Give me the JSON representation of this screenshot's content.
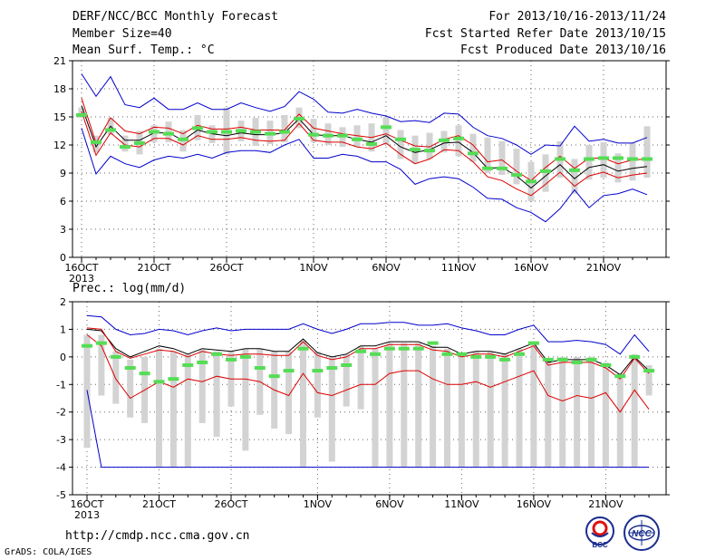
{
  "header": {
    "title": "DERF/NCC/BCC Monthly Forecast",
    "member_size": "Member Size=40",
    "variable": "Mean Surf. Temp.: °C",
    "period": "For 2013/10/16-2013/11/24",
    "started": "Fcst Started Refer Date 2013/10/15",
    "produced": "Fcst Produced Date 2013/10/16"
  },
  "footer": {
    "url": "http://cmdp.ncc.cma.gov.cn",
    "credit": "GrADS: COLA/IGES",
    "logo1_text": "BCC",
    "logo2_text": "NCC"
  },
  "chart_data": [
    {
      "type": "line",
      "title": "Mean Surf. Temp.: °C",
      "x_tick_labels": [
        "16OCT",
        "21OCT",
        "26OCT",
        "1NOV",
        "6NOV",
        "11NOV",
        "16NOV",
        "21NOV"
      ],
      "x_tick_index": [
        0,
        5,
        10,
        16,
        21,
        26,
        31,
        36
      ],
      "x_year_label": "2013",
      "ylim": [
        0,
        21
      ],
      "yticks": [
        0,
        3,
        6,
        9,
        12,
        15,
        18,
        21
      ],
      "grid": "dotted",
      "box_color": "#d3d3d3",
      "series": [
        {
          "role": "max",
          "color": "#0000cc",
          "values": [
            19.6,
            17.2,
            19.3,
            16.3,
            16.0,
            17.0,
            15.8,
            15.8,
            16.5,
            15.8,
            15.8,
            16.5,
            16.0,
            15.6,
            16.1,
            17.7,
            16.9,
            15.5,
            15.4,
            15.8,
            15.4,
            15.1,
            14.5,
            14.6,
            14.4,
            15.4,
            15.3,
            13.9,
            13.0,
            12.7,
            12.0,
            11.0,
            12.0,
            11.9,
            14.0,
            12.4,
            12.6,
            12.2,
            12.2,
            12.8
          ]
        },
        {
          "role": "upper",
          "color": "#dd0000",
          "values": [
            17.0,
            12.2,
            14.9,
            13.5,
            13.2,
            13.9,
            13.8,
            13.2,
            14.1,
            13.7,
            13.7,
            13.9,
            13.6,
            13.6,
            13.6,
            15.3,
            13.8,
            13.5,
            13.2,
            13.0,
            12.8,
            13.2,
            12.5,
            11.9,
            11.8,
            12.6,
            13.0,
            12.0,
            10.2,
            10.4,
            9.2,
            8.2,
            9.6,
            10.8,
            9.5,
            10.6,
            10.6,
            10.0,
            10.4,
            10.5
          ]
        },
        {
          "role": "median",
          "color": "#000000",
          "values": [
            16.2,
            11.8,
            14.0,
            12.5,
            12.5,
            13.3,
            13.3,
            12.5,
            13.6,
            13.2,
            13.0,
            13.3,
            13.1,
            13.1,
            13.3,
            14.8,
            13.1,
            13.0,
            13.0,
            12.6,
            12.3,
            13.0,
            11.8,
            11.2,
            11.5,
            12.2,
            12.3,
            11.2,
            9.5,
            9.6,
            8.7,
            7.4,
            8.7,
            9.9,
            8.4,
            9.6,
            9.9,
            9.2,
            9.5,
            9.7
          ]
        },
        {
          "role": "lower",
          "color": "#dd0000",
          "values": [
            15.6,
            10.9,
            13.3,
            12.0,
            11.8,
            12.7,
            12.7,
            12.0,
            13.0,
            12.6,
            12.6,
            12.8,
            12.5,
            12.4,
            12.5,
            14.3,
            12.5,
            12.3,
            12.3,
            11.8,
            11.6,
            12.2,
            11.0,
            10.0,
            10.5,
            11.5,
            11.4,
            10.2,
            8.6,
            8.2,
            7.3,
            6.6,
            7.8,
            9.1,
            7.6,
            8.7,
            9.1,
            8.5,
            8.8,
            9.0
          ]
        },
        {
          "role": "min",
          "color": "#0000cc",
          "values": [
            13.8,
            8.9,
            10.8,
            10.0,
            9.6,
            10.4,
            10.8,
            10.6,
            11.0,
            10.6,
            11.2,
            11.4,
            11.4,
            11.2,
            12.0,
            12.6,
            10.6,
            10.6,
            11.0,
            10.8,
            10.2,
            10.2,
            9.4,
            7.8,
            8.4,
            8.6,
            8.4,
            7.5,
            6.3,
            6.2,
            5.3,
            4.8,
            3.8,
            5.2,
            7.2,
            5.3,
            6.6,
            6.8,
            7.3,
            6.7
          ]
        }
      ],
      "box_low": [
        14.9,
        11.2,
        13.1,
        11.3,
        11.0,
        12.3,
        12.3,
        11.3,
        12.5,
        12.2,
        11.0,
        12.4,
        11.9,
        12.1,
        12.3,
        13.8,
        12.3,
        12.0,
        11.8,
        11.8,
        11.3,
        12.0,
        10.5,
        10.0,
        10.5,
        11.2,
        10.8,
        10.2,
        9.0,
        8.8,
        7.8,
        6.0,
        7.0,
        8.5,
        6.8,
        8.3,
        8.5,
        8.0,
        8.2,
        8.5
      ],
      "box_high": [
        16.0,
        13.0,
        14.9,
        13.0,
        13.5,
        14.1,
        14.5,
        13.6,
        15.2,
        14.1,
        16.0,
        14.6,
        14.9,
        14.6,
        15.2,
        16.0,
        14.8,
        14.3,
        13.9,
        14.1,
        14.3,
        15.0,
        13.6,
        13.0,
        13.3,
        13.5,
        14.1,
        13.2,
        12.8,
        12.4,
        11.6,
        10.2,
        11.0,
        12.4,
        10.5,
        12.0,
        12.3,
        11.1,
        12.2,
        14.0
      ],
      "obs_green": [
        15.2,
        12.3,
        13.6,
        11.8,
        12.2,
        13.4,
        13.2,
        12.6,
        13.8,
        13.4,
        13.4,
        13.5,
        13.4,
        13.2,
        13.4,
        14.8,
        13.1,
        13.0,
        13.0,
        12.6,
        12.1,
        13.9,
        12.6,
        11.5,
        11.4,
        12.5,
        12.7,
        11.1,
        9.5,
        9.5,
        8.8,
        8.1,
        9.2,
        10.5,
        9.3,
        10.5,
        10.6,
        10.6,
        10.5,
        10.5
      ]
    },
    {
      "type": "line",
      "title": "Prec.: log(mm/d)",
      "x_tick_labels": [
        "16OCT",
        "21OCT",
        "26OCT",
        "1NOV",
        "6NOV",
        "11NOV",
        "16NOV",
        "21NOV"
      ],
      "x_tick_index": [
        0,
        5,
        10,
        16,
        21,
        26,
        31,
        36
      ],
      "x_year_label": "2013",
      "ylim": [
        -5,
        2
      ],
      "yticks": [
        -5,
        -4,
        -3,
        -2,
        -1,
        0,
        1,
        2
      ],
      "grid": "dotted",
      "box_color": "#d3d3d3",
      "series": [
        {
          "role": "max",
          "color": "#0000cc",
          "values": [
            1.5,
            1.45,
            1.0,
            0.8,
            0.85,
            1.0,
            0.95,
            0.8,
            0.95,
            1.05,
            0.95,
            1.0,
            1.0,
            1.0,
            1.0,
            1.2,
            1.0,
            0.85,
            1.0,
            1.2,
            1.2,
            1.25,
            1.25,
            1.15,
            1.15,
            1.2,
            1.05,
            0.95,
            0.8,
            0.8,
            1.0,
            1.15,
            0.55,
            0.55,
            0.6,
            0.55,
            0.45,
            0.1,
            0.8,
            0.2
          ]
        },
        {
          "role": "median",
          "color": "#000000",
          "values": [
            1.0,
            0.95,
            0.3,
            0.0,
            0.2,
            0.4,
            0.3,
            0.1,
            0.3,
            0.25,
            0.2,
            0.3,
            0.3,
            0.2,
            0.2,
            0.65,
            0.15,
            0.0,
            0.1,
            0.4,
            0.4,
            0.55,
            0.55,
            0.55,
            0.35,
            0.35,
            0.1,
            0.2,
            0.2,
            0.1,
            0.3,
            0.5,
            -0.2,
            -0.1,
            -0.1,
            -0.1,
            -0.3,
            -0.65,
            0.0,
            -0.5
          ]
        },
        {
          "role": "upper",
          "color": "#dd0000",
          "values": [
            1.05,
            1.0,
            0.2,
            -0.05,
            0.1,
            0.25,
            0.2,
            0.0,
            0.2,
            0.1,
            0.05,
            0.1,
            0.1,
            0.05,
            0.05,
            0.55,
            0.05,
            -0.1,
            0.0,
            0.3,
            0.3,
            0.45,
            0.45,
            0.45,
            0.25,
            0.2,
            0.0,
            0.1,
            0.1,
            0.0,
            0.2,
            0.4,
            -0.3,
            -0.2,
            -0.2,
            -0.2,
            -0.4,
            -0.8,
            -0.05,
            -0.6
          ]
        },
        {
          "role": "lower",
          "color": "#dd0000",
          "values": [
            0.8,
            0.4,
            -0.8,
            -1.5,
            -1.2,
            -0.9,
            -1.1,
            -0.8,
            -0.9,
            -0.7,
            -0.8,
            -0.8,
            -0.9,
            -1.2,
            -1.4,
            -0.6,
            -1.3,
            -1.4,
            -1.2,
            -1.0,
            -1.0,
            -0.6,
            -0.5,
            -0.5,
            -0.8,
            -1.0,
            -1.0,
            -0.9,
            -1.1,
            -0.9,
            -0.7,
            -0.5,
            -1.4,
            -1.6,
            -1.4,
            -1.5,
            -1.3,
            -2.0,
            -1.2,
            -1.9
          ]
        },
        {
          "role": "min",
          "color": "#0000cc",
          "values": [
            -1.2,
            -4.0,
            -4.0,
            -4.0,
            -4.0,
            -4.0,
            -4.0,
            -4.0,
            -4.0,
            -4.0,
            -4.0,
            -4.0,
            -4.0,
            -4.0,
            -4.0,
            -4.0,
            -4.0,
            -4.0,
            -4.0,
            -4.0,
            -4.0,
            -4.0,
            -4.0,
            -4.0,
            -4.0,
            -4.0,
            -4.0,
            -4.0,
            -4.0,
            -4.0,
            -4.0,
            -4.0,
            -4.0,
            -4.0,
            -4.0,
            -4.0,
            -4.0,
            -4.0,
            -4.0,
            -4.0
          ]
        },
        {
          "role": "mean",
          "color": "#66ee66",
          "values": [
            0.4,
            0.5,
            0.0,
            -0.4,
            -0.6,
            -0.9,
            -0.8,
            -0.3,
            -0.2,
            0.1,
            -0.1,
            0.0,
            -0.4,
            -0.7,
            -0.5,
            0.3,
            -0.5,
            -0.4,
            -0.3,
            0.2,
            0.1,
            0.3,
            0.3,
            0.3,
            0.5,
            0.1,
            0.0,
            0.0,
            0.0,
            -0.1,
            0.0,
            0.1,
            0.55,
            -0.2,
            0.0,
            -0.2,
            0.0,
            -0.3,
            -0.7,
            0.0
          ]
        }
      ],
      "box_low": [
        -3.3,
        -1.4,
        -1.7,
        -2.2,
        -2.4,
        -4.0,
        -4.0,
        -4.0,
        -2.4,
        -2.9,
        -1.8,
        -3.4,
        -2.1,
        -2.6,
        -2.8,
        -4.0,
        -2.2,
        -3.8,
        -1.8,
        -1.9,
        -4.0,
        -4.0,
        -4.0,
        -4.0,
        -4.0,
        -4.0,
        -4.0,
        -4.0,
        -4.0,
        -4.0,
        -4.0,
        -4.0,
        -4.0,
        -4.0,
        -4.0,
        -4.0,
        -4.0,
        -4.0,
        -4.0,
        -1.4
      ],
      "box_high": [
        0.8,
        0.8,
        0.2,
        -0.1,
        0.0,
        0.3,
        0.2,
        0.1,
        0.3,
        0.2,
        0.2,
        0.3,
        0.3,
        0.2,
        0.2,
        0.6,
        0.2,
        0.0,
        0.1,
        0.4,
        0.3,
        0.5,
        0.5,
        0.5,
        0.4,
        0.3,
        0.1,
        0.2,
        0.2,
        0.1,
        0.3,
        0.5,
        -0.1,
        0.0,
        0.0,
        0.0,
        -0.2,
        -0.6,
        0.1,
        -0.3
      ],
      "obs_green": [
        0.4,
        0.5,
        0.0,
        -0.4,
        -0.6,
        -0.9,
        -0.8,
        -0.3,
        -0.2,
        0.1,
        -0.1,
        0.0,
        -0.4,
        -0.7,
        -0.5,
        0.3,
        -0.5,
        -0.4,
        -0.3,
        0.2,
        0.1,
        0.3,
        0.3,
        0.3,
        0.5,
        0.1,
        0.1,
        0.0,
        0.0,
        -0.1,
        0.1,
        0.5,
        -0.1,
        -0.1,
        -0.2,
        -0.1,
        -0.3,
        -0.7,
        0.0,
        -0.5
      ]
    }
  ]
}
